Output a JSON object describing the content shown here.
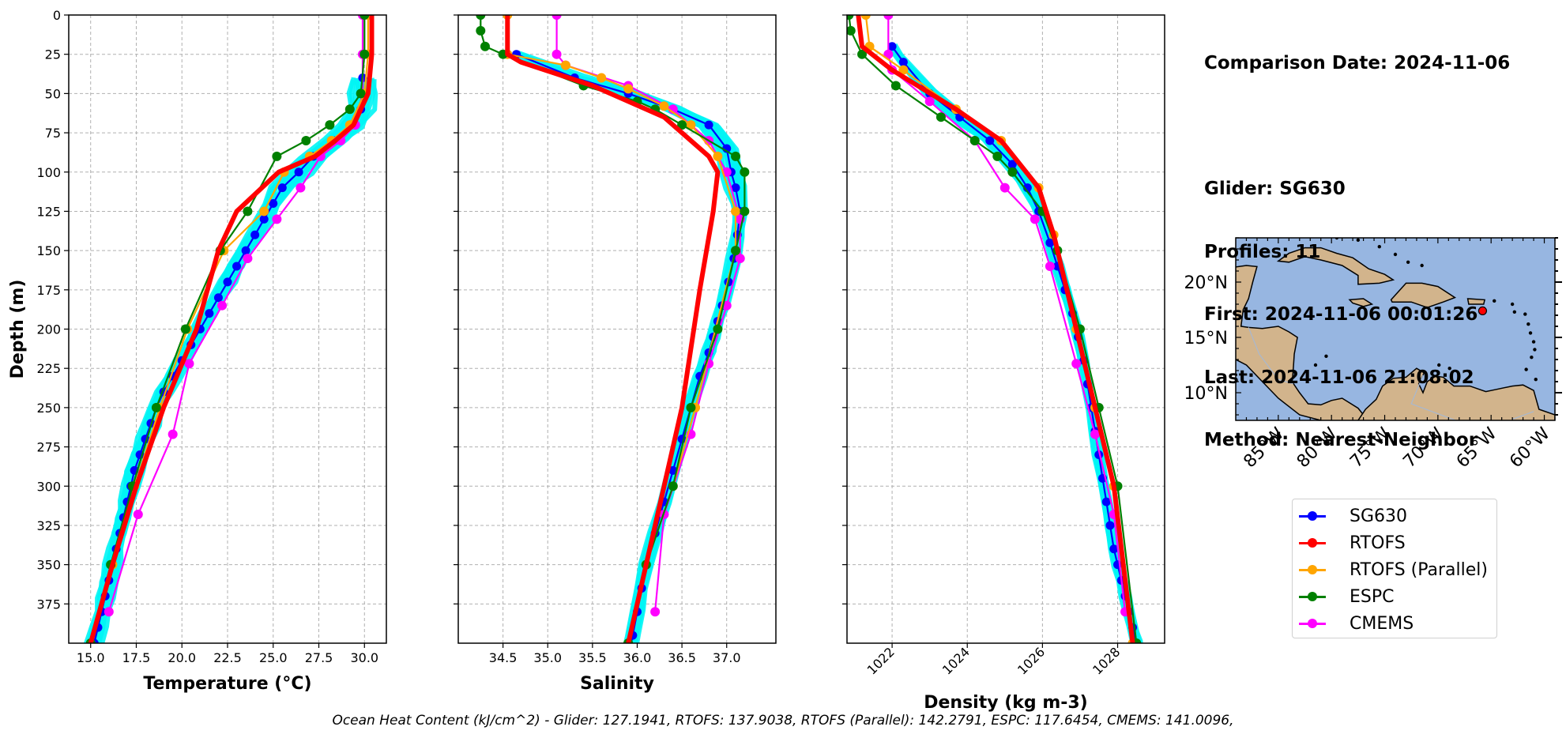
{
  "chart_data": [
    {
      "type": "line",
      "xlabel": "Temperature (°C)",
      "ylabel": "Depth (m)",
      "xlim": [
        13.8,
        31.2
      ],
      "ylim": [
        400,
        0
      ],
      "xticks": [
        15.0,
        17.5,
        20.0,
        22.5,
        25.0,
        27.5,
        30.0
      ],
      "xtick_labels": [
        "15.0",
        "17.5",
        "20.0",
        "22.5",
        "25.0",
        "27.5",
        "30.0"
      ],
      "yticks": [
        0,
        25,
        50,
        75,
        100,
        125,
        150,
        175,
        200,
        225,
        250,
        275,
        300,
        325,
        350,
        375
      ],
      "grid": true,
      "series": [
        {
          "name": "SG630",
          "color": "#0000ff",
          "marker": "o",
          "x": [
            29.9,
            29.9,
            29.8,
            29.3,
            28.4,
            27.2,
            26.4,
            25.5,
            25.0,
            24.5,
            24.0,
            23.5,
            23.0,
            22.5,
            22.0,
            21.5,
            21.0,
            20.5,
            20.0,
            19.5,
            19.0,
            18.6,
            18.3,
            18.0,
            17.7,
            17.4,
            17.2,
            17.0,
            16.8,
            16.6,
            16.4,
            16.2,
            16.0,
            15.8,
            15.6,
            15.4,
            15.2,
            15.0
          ],
          "y": [
            40,
            50,
            60,
            70,
            80,
            90,
            100,
            110,
            120,
            130,
            140,
            150,
            160,
            170,
            180,
            190,
            200,
            210,
            220,
            230,
            240,
            250,
            260,
            270,
            280,
            290,
            300,
            310,
            320,
            330,
            340,
            350,
            360,
            370,
            380,
            390,
            400,
            410
          ]
        },
        {
          "name": "RTOFS",
          "color": "#ff0000",
          "marker": "o",
          "x": [
            30.4,
            30.4,
            30.2,
            29.4,
            28.4,
            27.3,
            25.3,
            23.0,
            22.0,
            20.8,
            19.0,
            17.5,
            16.2,
            15.0
          ],
          "y": [
            0,
            25,
            50,
            70,
            80,
            90,
            100,
            125,
            150,
            200,
            250,
            300,
            350,
            400
          ]
        },
        {
          "name": "RTOFS (Parallel)",
          "color": "#ffa500",
          "marker": "o",
          "x": [
            30.2,
            30.2,
            30.0,
            29.2,
            28.2,
            27.0,
            25.6,
            24.5,
            22.3,
            20.3,
            18.8,
            17.4,
            16.2,
            15.0
          ],
          "y": [
            0,
            25,
            50,
            70,
            80,
            90,
            100,
            125,
            150,
            200,
            250,
            300,
            350,
            400
          ]
        },
        {
          "name": "ESPC",
          "color": "#008000",
          "marker": "o",
          "x": [
            30.0,
            30.0,
            29.8,
            29.2,
            28.1,
            26.8,
            25.2,
            23.6,
            22.1,
            20.2,
            18.6,
            17.3,
            16.1,
            15.0
          ],
          "y": [
            0,
            25,
            50,
            60,
            70,
            80,
            90,
            125,
            150,
            200,
            250,
            300,
            350,
            400
          ]
        },
        {
          "name": "CMEMS",
          "color": "#ff00ff",
          "marker": "o",
          "x": [
            29.9,
            29.9,
            29.9,
            29.5,
            28.7,
            27.6,
            26.5,
            25.2,
            23.6,
            22.2,
            20.4,
            19.5,
            17.6,
            16.0
          ],
          "y": [
            0,
            25,
            50,
            70,
            80,
            90,
            110,
            130,
            155,
            185,
            222,
            267,
            318,
            380
          ]
        }
      ]
    },
    {
      "type": "line",
      "xlabel": "Salinity",
      "xlim": [
        34.0,
        37.55
      ],
      "ylim": [
        400,
        0
      ],
      "xticks": [
        34.5,
        35.0,
        35.5,
        36.0,
        36.5,
        37.0
      ],
      "xtick_labels": [
        "34.5",
        "35.0",
        "35.5",
        "36.0",
        "36.5",
        "37.0"
      ],
      "grid": true,
      "series": [
        {
          "name": "SG630",
          "color": "#0000ff",
          "marker": "o",
          "x": [
            34.65,
            35.3,
            35.9,
            36.4,
            36.8,
            37.0,
            37.05,
            37.1,
            37.15,
            37.12,
            37.08,
            37.02,
            36.95,
            36.9,
            36.85,
            36.8,
            36.7,
            36.6,
            36.5,
            36.4,
            36.3,
            36.2,
            36.1,
            36.05,
            36.0,
            35.95,
            35.9
          ],
          "y": [
            25,
            40,
            50,
            60,
            70,
            85,
            100,
            110,
            125,
            140,
            155,
            170,
            185,
            195,
            205,
            215,
            230,
            250,
            270,
            290,
            310,
            330,
            350,
            365,
            380,
            395,
            410
          ]
        },
        {
          "name": "RTOFS",
          "color": "#ff0000",
          "marker": "o",
          "x": [
            34.55,
            34.55,
            34.7,
            35.5,
            36.3,
            36.8,
            36.9,
            36.85,
            36.7,
            36.5,
            36.3,
            36.1,
            35.9
          ],
          "y": [
            0,
            25,
            30,
            45,
            65,
            90,
            100,
            125,
            175,
            250,
            300,
            350,
            400
          ]
        },
        {
          "name": "RTOFS (Parallel)",
          "color": "#ffa500",
          "marker": "o",
          "x": [
            34.55,
            34.55,
            35.2,
            35.6,
            35.9,
            36.3,
            36.6,
            36.9,
            37.1,
            37.1,
            36.65,
            36.4,
            36.1,
            35.9
          ],
          "y": [
            0,
            25,
            32,
            40,
            47,
            58,
            70,
            90,
            125,
            150,
            250,
            300,
            350,
            400
          ]
        },
        {
          "name": "ESPC",
          "color": "#008000",
          "marker": "o",
          "x": [
            34.25,
            34.25,
            34.3,
            34.5,
            35.4,
            36.0,
            36.2,
            36.5,
            37.1,
            37.2,
            37.2,
            37.1,
            36.9,
            36.6,
            36.4,
            36.1,
            35.9
          ],
          "y": [
            0,
            10,
            20,
            25,
            45,
            55,
            60,
            70,
            90,
            100,
            125,
            150,
            200,
            250,
            300,
            350,
            400
          ]
        },
        {
          "name": "CMEMS",
          "color": "#ff00ff",
          "marker": "o",
          "x": [
            35.1,
            35.1,
            35.2,
            35.9,
            36.4,
            36.8,
            37.0,
            37.15,
            37.15,
            37.0,
            36.8,
            36.6,
            36.3,
            36.2
          ],
          "y": [
            0,
            25,
            32,
            45,
            60,
            80,
            100,
            130,
            155,
            185,
            222,
            267,
            318,
            380
          ]
        }
      ]
    },
    {
      "type": "line",
      "xlabel": "Density (kg m-3)",
      "xlim": [
        1020.8,
        1029.25
      ],
      "ylim": [
        400,
        0
      ],
      "xticks": [
        1022,
        1024,
        1026,
        1028
      ],
      "xtick_labels": [
        "1022",
        "1024",
        "1026",
        "1028"
      ],
      "grid": true,
      "series": [
        {
          "name": "SG630",
          "color": "#0000ff",
          "marker": "o",
          "x": [
            1022.0,
            1022.3,
            1023.0,
            1023.8,
            1024.6,
            1025.2,
            1025.6,
            1025.9,
            1026.2,
            1026.4,
            1026.6,
            1026.8,
            1026.95,
            1027.1,
            1027.2,
            1027.3,
            1027.4,
            1027.5,
            1027.6,
            1027.7,
            1027.8,
            1027.9,
            1028.0,
            1028.1,
            1028.2,
            1028.3,
            1028.4,
            1028.5,
            1028.55
          ],
          "y": [
            20,
            30,
            50,
            65,
            80,
            95,
            110,
            125,
            145,
            160,
            175,
            190,
            205,
            220,
            235,
            250,
            265,
            280,
            295,
            310,
            325,
            340,
            350,
            360,
            370,
            380,
            390,
            400,
            410
          ]
        },
        {
          "name": "RTOFS",
          "color": "#ff0000",
          "marker": "o",
          "x": [
            1021.1,
            1021.2,
            1022.0,
            1023.7,
            1024.9,
            1025.9,
            1026.3,
            1026.9,
            1027.4,
            1027.9,
            1028.4
          ],
          "y": [
            0,
            20,
            35,
            60,
            80,
            110,
            140,
            200,
            250,
            300,
            400
          ]
        },
        {
          "name": "RTOFS (Parallel)",
          "color": "#ffa500",
          "marker": "o",
          "x": [
            1021.3,
            1021.4,
            1022.3,
            1023.7,
            1024.9,
            1025.9,
            1026.3,
            1026.9,
            1027.4,
            1027.9,
            1028.4
          ],
          "y": [
            0,
            20,
            35,
            60,
            80,
            110,
            140,
            200,
            250,
            300,
            400
          ]
        },
        {
          "name": "ESPC",
          "color": "#008000",
          "marker": "o",
          "x": [
            1020.85,
            1020.9,
            1021.2,
            1022.1,
            1023.3,
            1024.2,
            1024.8,
            1025.2,
            1026.0,
            1026.4,
            1027.0,
            1027.5,
            1028.0,
            1028.5
          ],
          "y": [
            0,
            10,
            25,
            45,
            65,
            80,
            90,
            100,
            125,
            150,
            200,
            250,
            300,
            400
          ]
        },
        {
          "name": "CMEMS",
          "color": "#ff00ff",
          "marker": "o",
          "x": [
            1021.9,
            1021.9,
            1022.0,
            1023.0,
            1024.2,
            1025.0,
            1025.8,
            1026.2,
            1026.9,
            1027.4,
            1027.9,
            1028.2
          ],
          "y": [
            0,
            25,
            35,
            55,
            80,
            110,
            130,
            160,
            222,
            267,
            318,
            380
          ]
        }
      ]
    }
  ],
  "map": {
    "lat_labels": [
      "20°N",
      "15°N",
      "10°N"
    ],
    "lon_labels": [
      "85°W",
      "80°W",
      "75°W",
      "70°W",
      "65°W",
      "60°W"
    ],
    "ocean_color": "#97b6e1",
    "land_color": "#d2b48c",
    "marker_color": "#ff0000"
  },
  "info": {
    "lines": [
      "Comparison Date: 2024-11-06",
      "",
      "Glider: SG630",
      "Profiles: 11",
      "First: 2024-11-06 00:01:26",
      "Last: 2024-11-06 21:08:02",
      "Method: Nearest-Neighbor"
    ]
  },
  "legend": {
    "items": [
      {
        "label": "SG630",
        "color": "#0000ff"
      },
      {
        "label": "RTOFS",
        "color": "#ff0000"
      },
      {
        "label": "RTOFS (Parallel)",
        "color": "#ffa500"
      },
      {
        "label": "ESPC",
        "color": "#008000"
      },
      {
        "label": "CMEMS",
        "color": "#ff00ff"
      }
    ]
  },
  "footer": {
    "text": "Ocean Heat Content (kJ/cm^2) - Glider: 127.1941,  RTOFS: 137.9038,  RTOFS (Parallel): 142.2791,  ESPC: 117.6454,  CMEMS: 141.0096,"
  }
}
